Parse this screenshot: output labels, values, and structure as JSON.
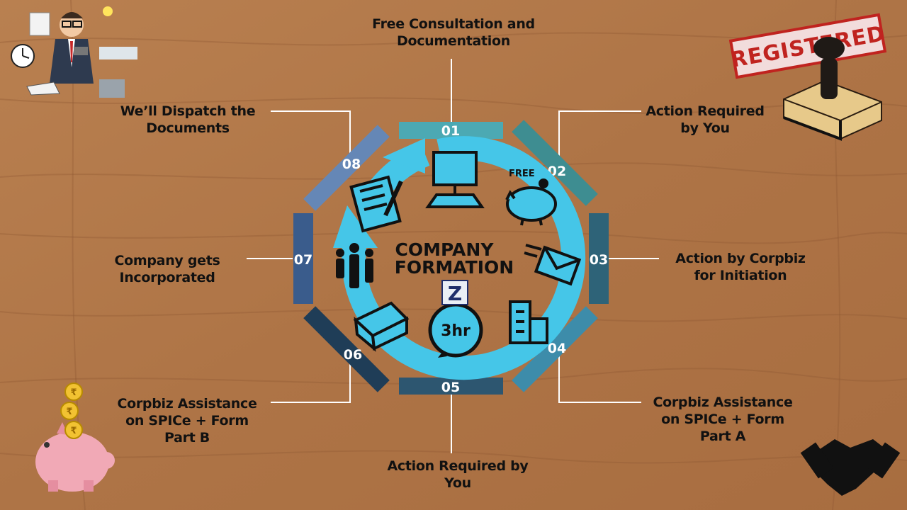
{
  "diagram": {
    "center": {
      "line1": "COMPANY",
      "line2": "FORMATION"
    },
    "steps": [
      {
        "num": "01",
        "label": [
          "Free Consultation and",
          "Documentation"
        ],
        "color": "#4ca9b3"
      },
      {
        "num": "02",
        "label": [
          "Action Required",
          "by You"
        ],
        "color": "#3e8d91"
      },
      {
        "num": "03",
        "label": [
          "Action by Corpbiz",
          "for Initiation"
        ],
        "color": "#2e6378"
      },
      {
        "num": "04",
        "label": [
          "Corpbiz Assistance",
          "on SPICe + Form",
          "Part A"
        ],
        "color": "#3d8caa"
      },
      {
        "num": "05",
        "label": [
          "Action Required by",
          "You"
        ],
        "color": "#2d5670"
      },
      {
        "num": "06",
        "label": [
          "Corpbiz Assistance",
          "on SPICe + Form",
          "Part B"
        ],
        "color": "#1f3d57"
      },
      {
        "num": "07",
        "label": [
          "Company gets",
          "Incorporated"
        ],
        "color": "#3a5c8c"
      },
      {
        "num": "08",
        "label": [
          "We’ll Dispatch the",
          "Documents"
        ],
        "color": "#6587b6"
      }
    ],
    "inner_icons": {
      "free_text": "FREE",
      "timer_text": "3hr",
      "logo_letter": "Z"
    }
  },
  "decorations": {
    "stamp_text": "REGISTERED",
    "coin_symbol": "₹"
  },
  "colors": {
    "wood": "#b57a4c",
    "ring_arrow": "#45c6e8",
    "connector": "#ffffff"
  }
}
